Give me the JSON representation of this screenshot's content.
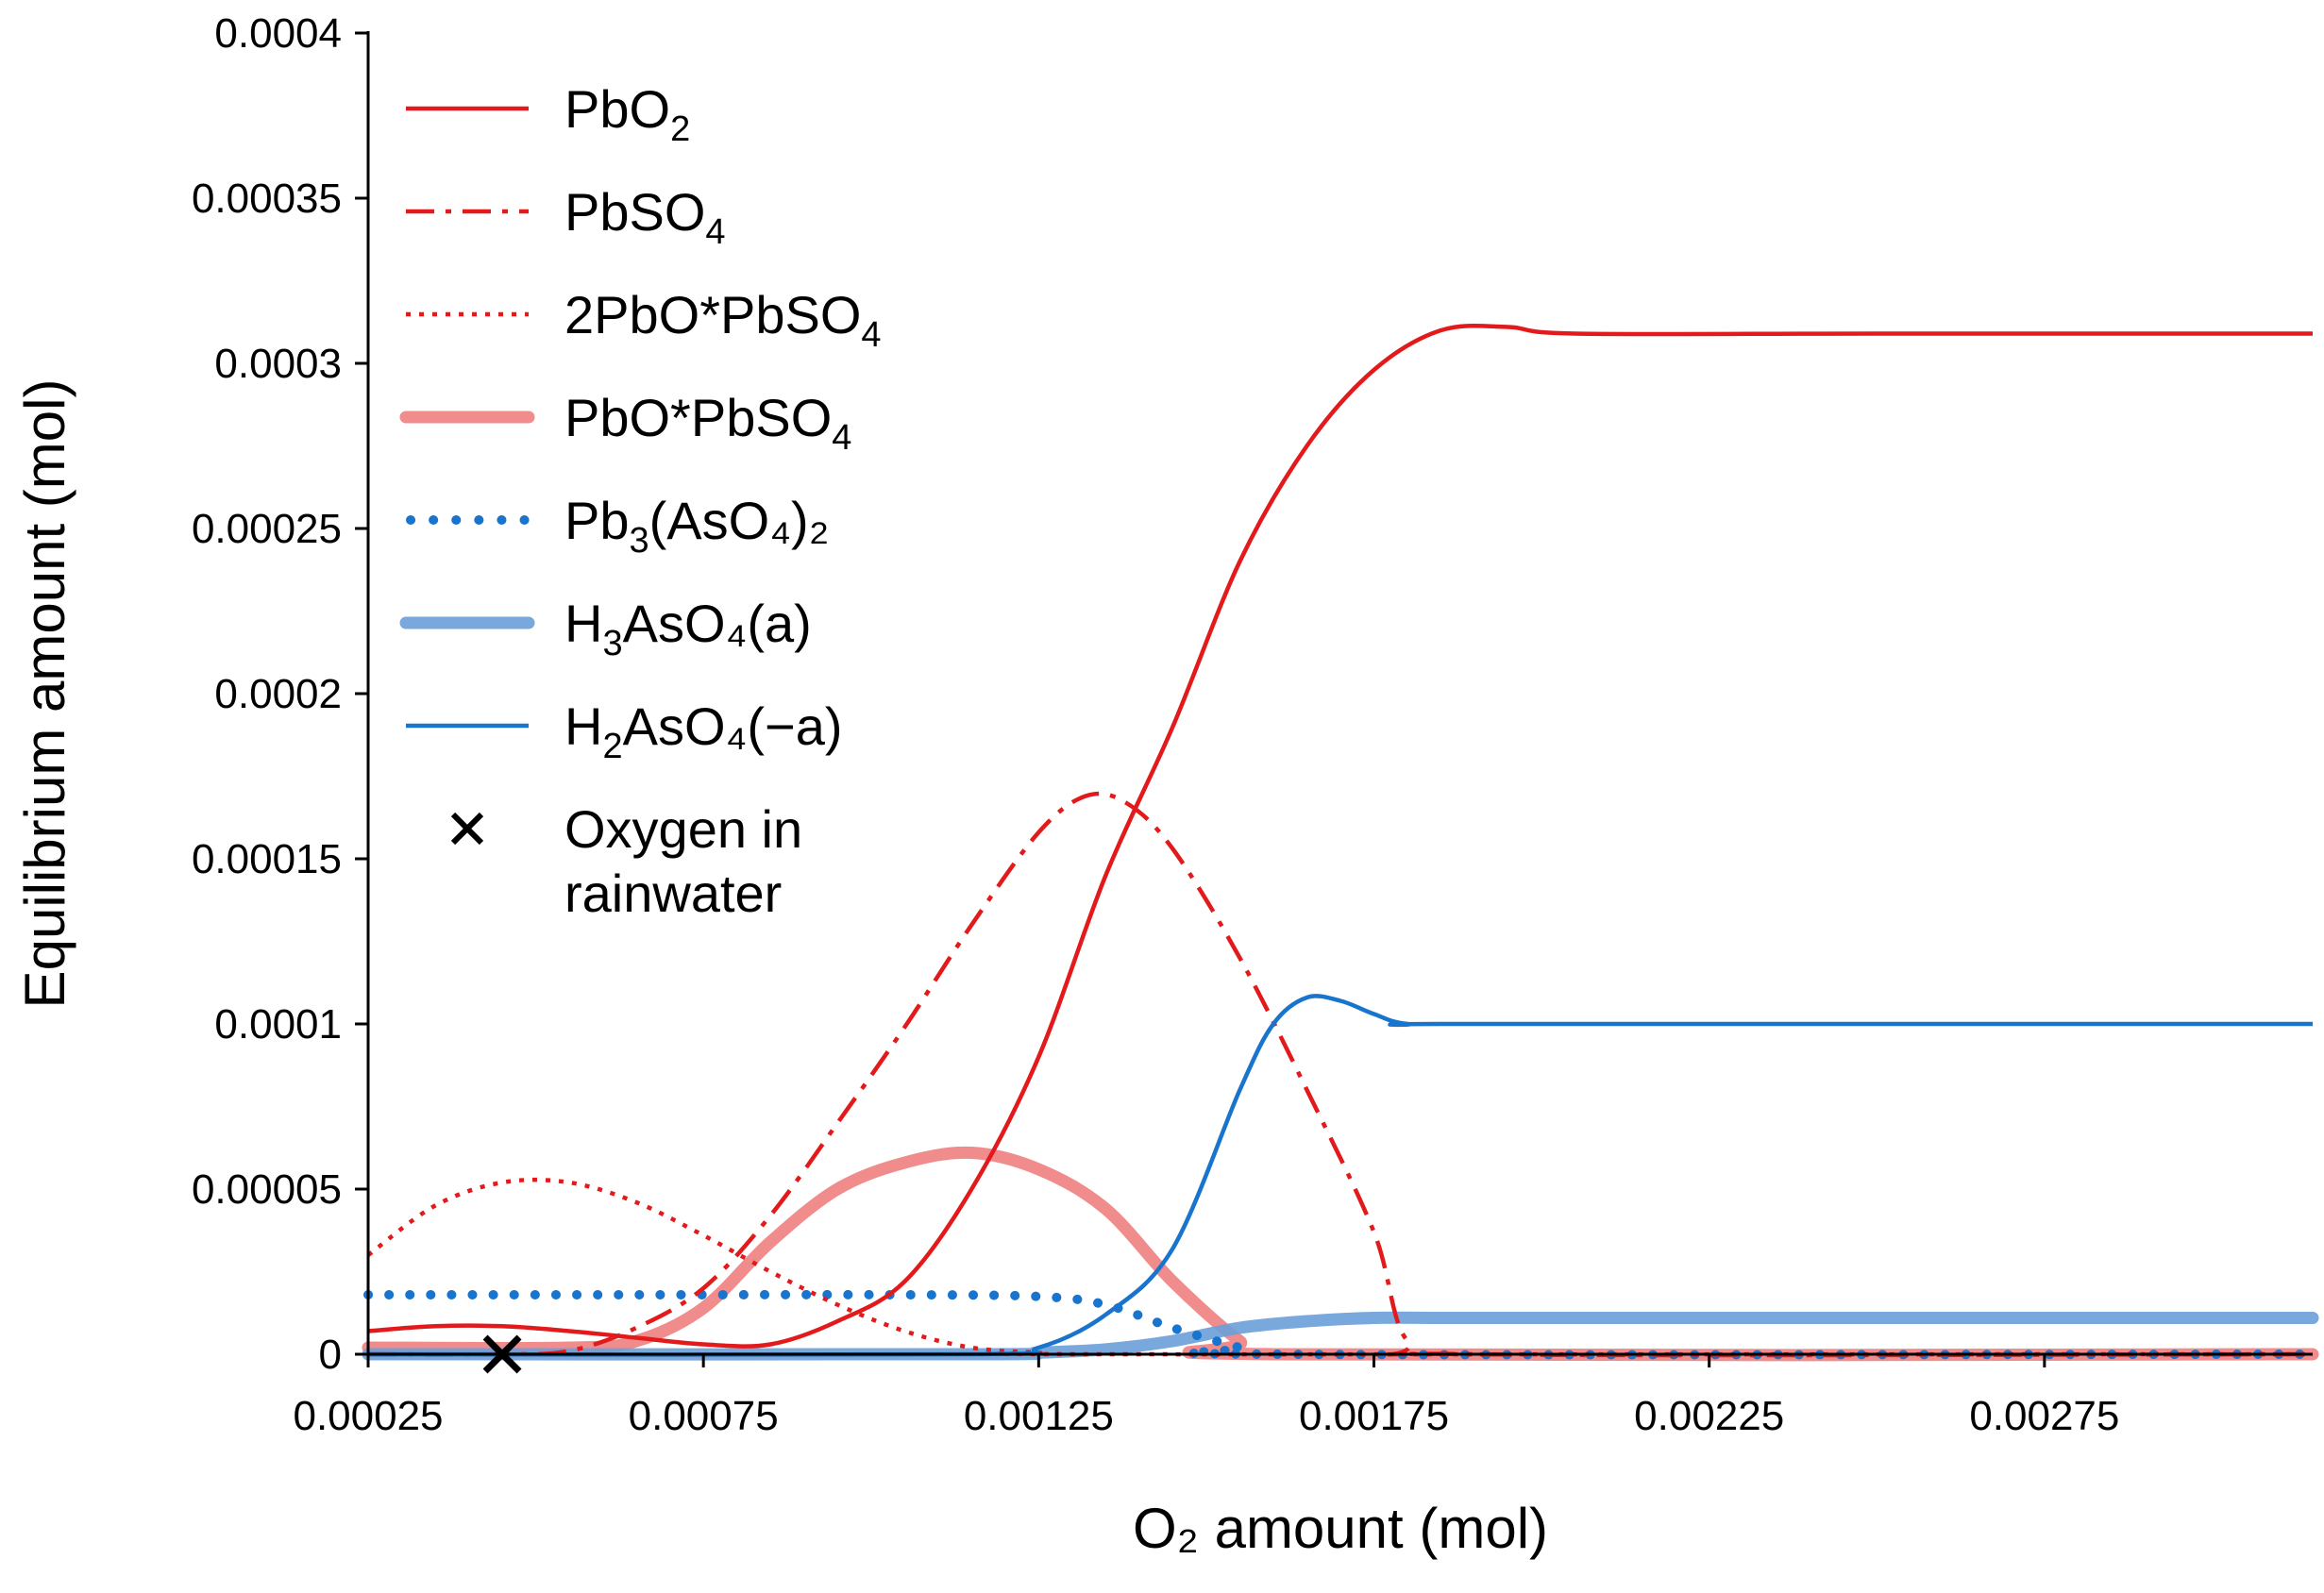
{
  "chart_data": {
    "type": "line",
    "title": "",
    "xlabel": "O₂ amount (mol)",
    "ylabel": "Equilibrium amount (mol)",
    "xlim": [
      0.00025,
      0.00315
    ],
    "ylim": [
      0,
      0.0004
    ],
    "x_ticks": [
      0.00025,
      0.00075,
      0.00125,
      0.00175,
      0.00225,
      0.00275
    ],
    "x_tick_labels": [
      "0.00025",
      "0.00075",
      "0.00125",
      "0.00175",
      "0.00225",
      "0.00275"
    ],
    "y_ticks": [
      0,
      5e-05,
      0.0001,
      0.00015,
      0.0002,
      0.00025,
      0.0003,
      0.00035,
      0.0004
    ],
    "y_tick_labels": [
      "0",
      "0.00005",
      "0.0001",
      "0.00015",
      "0.0002",
      "0.00025",
      "0.0003",
      "0.00035",
      "0.0004"
    ],
    "grid": false,
    "legend_position": "top-left",
    "series": [
      {
        "name": "PbO2",
        "label_main": "PbO",
        "label_sub": "2",
        "label_tail": "",
        "color": "#E31A1C",
        "style": "solid",
        "x": [
          0.00025,
          0.00035,
          0.00045,
          0.00055,
          0.00065,
          0.00075,
          0.00085,
          0.00095,
          0.00105,
          0.00115,
          0.00125,
          0.00135,
          0.00145,
          0.00155,
          0.00165,
          0.00175,
          0.00185,
          0.00195,
          0.00205,
          0.0025,
          0.00315
        ],
        "y": [
          7e-06,
          8.5e-06,
          8.5e-06,
          7e-06,
          5e-06,
          3e-06,
          3e-06,
          1e-05,
          2.2e-05,
          5e-05,
          9e-05,
          0.000145,
          0.00019,
          0.00024,
          0.000275,
          0.000298,
          0.00031,
          0.000311,
          0.000309,
          0.000309,
          0.000309
        ]
      },
      {
        "name": "PbSO4",
        "label_main": "PbSO",
        "label_sub": "4",
        "label_tail": "",
        "color": "#E31A1C",
        "style": "dashdot",
        "x": [
          0.00025,
          0.00045,
          0.00055,
          0.00065,
          0.00075,
          0.00085,
          0.00095,
          0.00105,
          0.00115,
          0.00125,
          0.00132,
          0.00138,
          0.00145,
          0.00155,
          0.00165,
          0.00175,
          0.0018,
          0.0019,
          0.00315
        ],
        "y": [
          0,
          0,
          1e-06,
          8e-06,
          2e-05,
          4.2e-05,
          7e-05,
          9.9e-05,
          0.00013,
          0.000158,
          0.000169,
          0.000167,
          0.000153,
          0.00012,
          8e-05,
          3.7e-05,
          4e-06,
          0,
          0
        ]
      },
      {
        "name": "2PbO*PbSO4",
        "label_main": "2PbO*PbSO",
        "label_sub": "4",
        "label_tail": "",
        "color": "#E31A1C",
        "style": "dotted",
        "x": [
          0.00025,
          0.00035,
          0.00045,
          0.00055,
          0.00065,
          0.00075,
          0.00085,
          0.00095,
          0.00105,
          0.00115,
          0.00125,
          0.00135,
          0.00315
        ],
        "y": [
          3e-05,
          4.5e-05,
          5.2e-05,
          5.2e-05,
          4.6e-05,
          3.6e-05,
          2.5e-05,
          1.5e-05,
          7e-06,
          2e-06,
          5e-07,
          0,
          0
        ]
      },
      {
        "name": "PbO*PbSO4",
        "label_main": "PbO*PbSO",
        "label_sub": "4",
        "label_tail": "",
        "color": "#F08080",
        "style": "thick",
        "x": [
          0.00025,
          0.00055,
          0.00065,
          0.00075,
          0.00085,
          0.00095,
          0.00105,
          0.00115,
          0.00125,
          0.00135,
          0.00145,
          0.00155,
          0.0016,
          0.00315
        ],
        "y": [
          2e-06,
          2e-06,
          4e-06,
          1.4e-05,
          3.4e-05,
          5e-05,
          5.8e-05,
          6.1e-05,
          5.6e-05,
          4.4e-05,
          2.2e-05,
          4e-06,
          0,
          0
        ]
      },
      {
        "name": "Pb3(AsO4)2",
        "label_main": "Pb",
        "label_sub": "3",
        "label_tail": "(AsO₄)₂",
        "color": "#1874CD",
        "style": "bigdots",
        "x": [
          0.00025,
          0.00065,
          0.00105,
          0.00125,
          0.00135,
          0.00145,
          0.00155,
          0.0016,
          0.00315
        ],
        "y": [
          1.8e-05,
          1.8e-05,
          1.8e-05,
          1.75e-05,
          1.5e-05,
          8e-06,
          2e-06,
          0,
          0
        ]
      },
      {
        "name": "H3AsO4(a)",
        "label_main": "H",
        "label_sub": "3",
        "label_tail": "AsO₄(a)",
        "color": "#6A9FD8",
        "style": "thick",
        "x": [
          0.00025,
          0.00115,
          0.00125,
          0.00135,
          0.00145,
          0.00155,
          0.00165,
          0.00175,
          0.00185,
          0.00195,
          0.00315
        ],
        "y": [
          0,
          0,
          5e-07,
          1.5e-06,
          4e-06,
          8e-06,
          1e-05,
          1.1e-05,
          1.1e-05,
          1.1e-05,
          1.1e-05
        ]
      },
      {
        "name": "H2AsO4(-a)",
        "label_main": "H",
        "label_sub": "2",
        "label_tail": "AsO₄(−a)",
        "color": "#1874CD",
        "style": "solid",
        "x": [
          0.00025,
          0.00115,
          0.00125,
          0.00135,
          0.00145,
          0.00155,
          0.0016,
          0.00165,
          0.0017,
          0.00175,
          0.0018,
          0.0019,
          0.00315
        ],
        "y": [
          0,
          0,
          2e-06,
          1.2e-05,
          3.2e-05,
          8e-05,
          0.0001,
          0.000108,
          0.000107,
          0.000103,
          0.0001,
          0.0001,
          0.0001
        ]
      }
    ],
    "markers": [
      {
        "name": "Oxygen in rainwater",
        "x": 0.00045,
        "y": 0,
        "symbol": "x",
        "color": "#000000"
      }
    ],
    "legend_marker_label_line1": "Oxygen in",
    "legend_marker_label_line2": "rainwater"
  }
}
